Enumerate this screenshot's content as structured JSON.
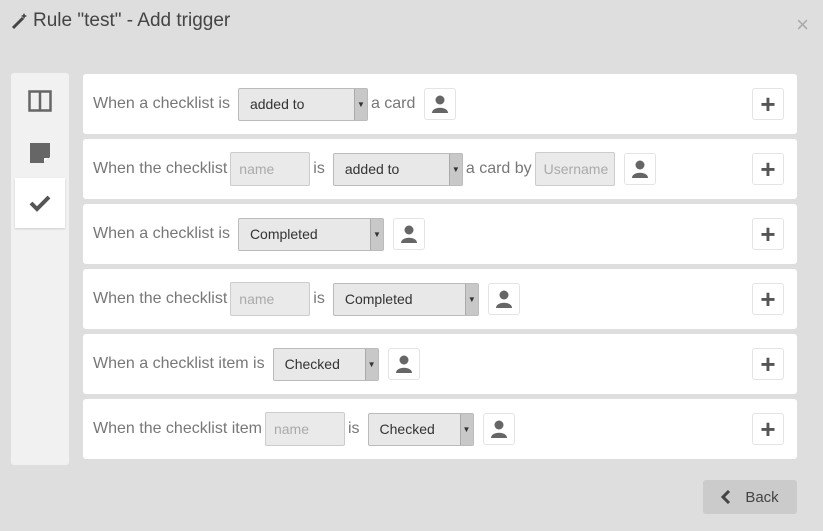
{
  "dialog": {
    "title": "Rule \"test\" - Add trigger",
    "close": "×"
  },
  "sidebar": {
    "tabs": [
      {
        "icon": "board-columns-icon"
      },
      {
        "icon": "card-icon"
      },
      {
        "icon": "checkmark-icon",
        "active": true
      }
    ]
  },
  "rows": [
    {
      "t1": "When a checklist is",
      "select": "added to",
      "t2": "a card"
    },
    {
      "t1": "When the checklist",
      "name_ph": "name",
      "t2": "is",
      "select": "added to",
      "t3": "a card by",
      "user_ph": "Username"
    },
    {
      "t1": "When a checklist is",
      "select": "Completed"
    },
    {
      "t1": "When the checklist",
      "name_ph": "name",
      "t2": "is",
      "select": "Completed"
    },
    {
      "t1": "When a checklist item is",
      "select": "Checked"
    },
    {
      "t1": "When the checklist item",
      "name_ph": "name",
      "t2": "is",
      "select": "Checked"
    }
  ],
  "footer": {
    "back": "Back"
  }
}
